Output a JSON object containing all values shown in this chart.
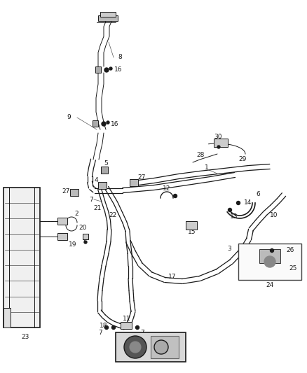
{
  "background_color": "#ffffff",
  "line_color": "#1a1a1a",
  "label_color": "#1a1a1a",
  "figsize": [
    4.38,
    5.33
  ],
  "dpi": 100,
  "lw_tube": 1.2,
  "lw_thin": 0.7,
  "label_fs": 6.5
}
